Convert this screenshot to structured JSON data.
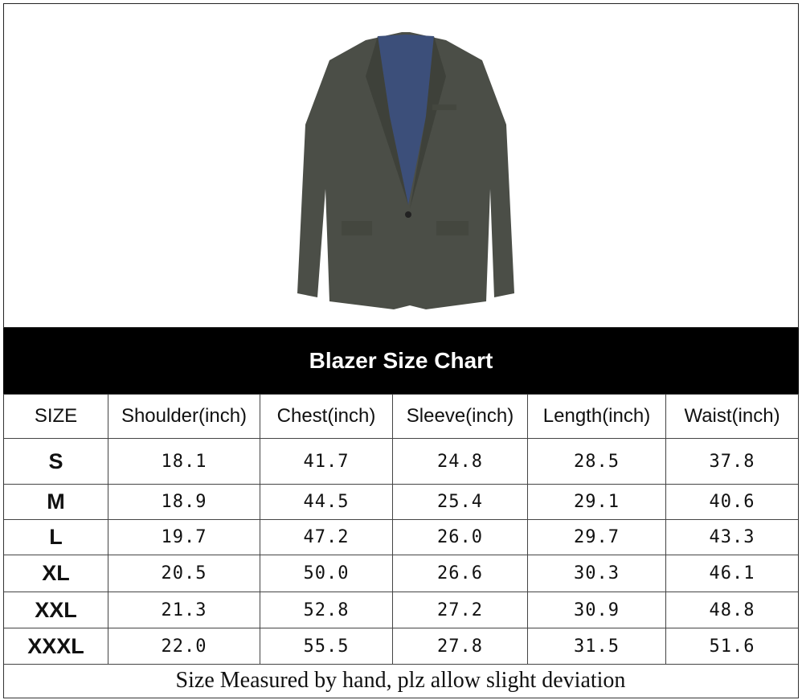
{
  "title": "Blazer Size Chart",
  "image": {
    "subject": "blazer-photo",
    "jacket_color": "#4b4e47",
    "lining_color": "#3c4f7a"
  },
  "table": {
    "headers": [
      "SIZE",
      "Shoulder(inch)",
      "Chest(inch)",
      "Sleeve(inch)",
      "Length(inch)",
      "Waist(inch)"
    ],
    "rows": [
      [
        "S",
        "18.1",
        "41.7",
        "24.8",
        "28.5",
        "37.8"
      ],
      [
        "M",
        "18.9",
        "44.5",
        "25.4",
        "29.1",
        "40.6"
      ],
      [
        "L",
        "19.7",
        "47.2",
        "26.0",
        "29.7",
        "43.3"
      ],
      [
        "XL",
        "20.5",
        "50.0",
        "26.6",
        "30.3",
        "46.1"
      ],
      [
        "XXL",
        "21.3",
        "52.8",
        "27.2",
        "30.9",
        "48.8"
      ],
      [
        "XXXL",
        "22.0",
        "55.5",
        "27.8",
        "31.5",
        "51.6"
      ]
    ]
  },
  "note": "Size Measured by hand, plz allow slight deviation"
}
